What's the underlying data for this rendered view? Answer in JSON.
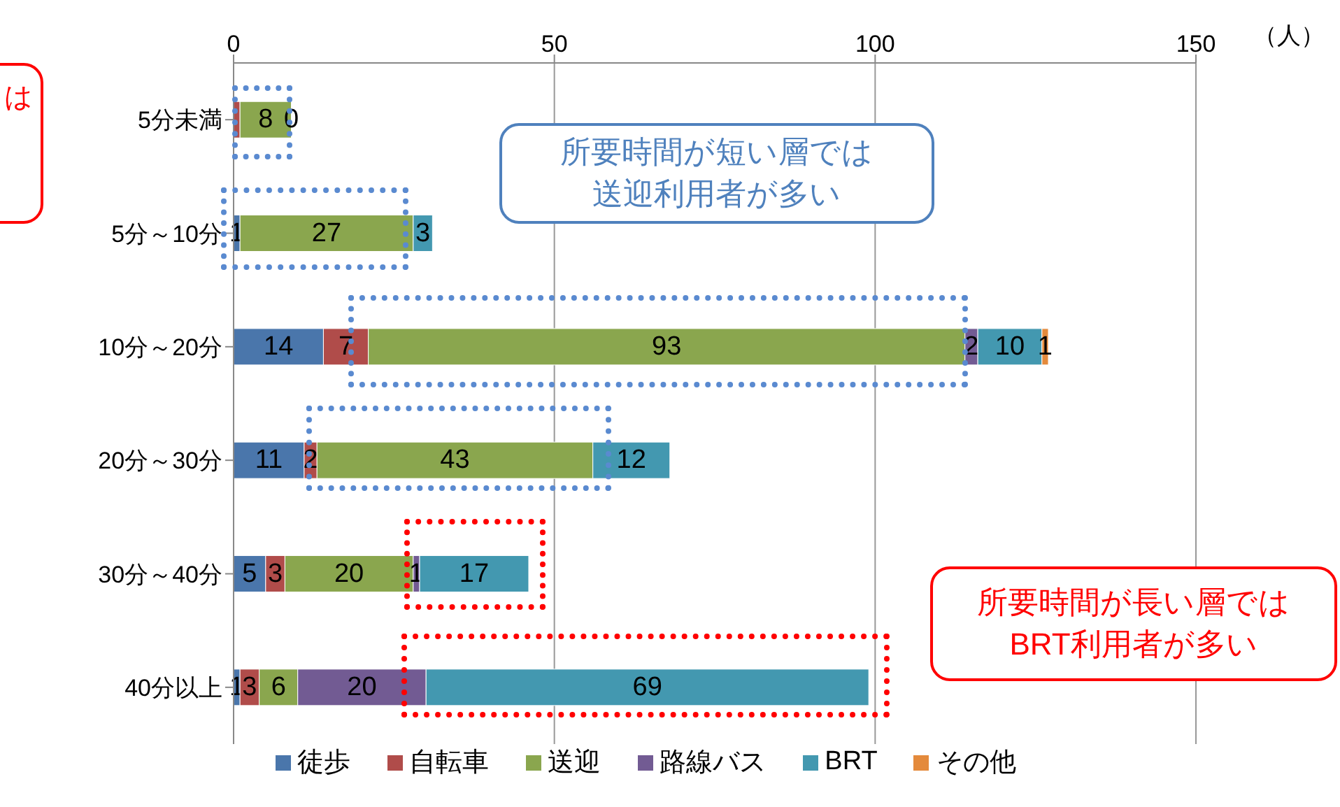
{
  "chart_data": {
    "type": "bar",
    "orientation": "horizontal",
    "stacked": true,
    "categories": [
      "5分未満",
      "5分～10分",
      "10分～20分",
      "20分～30分",
      "30分～40分",
      "40分以上"
    ],
    "series": [
      {
        "name": "徒歩",
        "color": "#4a76ab",
        "values": [
          0,
          1,
          14,
          11,
          5,
          1
        ],
        "value_labels": [
          null,
          "1",
          "14",
          "11",
          "5",
          "1"
        ]
      },
      {
        "name": "自転車",
        "color": "#b04c4a",
        "values": [
          1,
          0,
          7,
          2,
          3,
          3
        ],
        "value_labels": [
          null,
          null,
          "7",
          "2",
          "3",
          "3"
        ]
      },
      {
        "name": "送迎",
        "color": "#8aa64e",
        "values": [
          8,
          27,
          93,
          43,
          20,
          6
        ],
        "value_labels": [
          "8",
          "27",
          "93",
          "43",
          "20",
          "6"
        ]
      },
      {
        "name": "路線バス",
        "color": "#725b93",
        "values": [
          0,
          0,
          2,
          0,
          1,
          20
        ],
        "value_labels": [
          null,
          null,
          "2",
          null,
          "1",
          "20"
        ]
      },
      {
        "name": "BRT",
        "color": "#4398b0",
        "values": [
          0,
          3,
          10,
          12,
          17,
          69
        ],
        "value_labels": [
          "0",
          "3",
          "10",
          "12",
          "17",
          "69"
        ]
      },
      {
        "name": "その他",
        "color": "#e48a3c",
        "values": [
          0,
          0,
          1,
          0,
          0,
          0
        ],
        "value_labels": [
          null,
          null,
          "1",
          null,
          null,
          null
        ]
      }
    ],
    "xlim": [
      0,
      150
    ],
    "xticks": [
      0,
      50,
      100,
      150
    ],
    "xlabel": "（人）",
    "grid": "x",
    "legend": "bottom",
    "annotations": [
      "所要時間が短い層では送迎利用者が多い",
      "所要時間が長い層ではBRT利用者が多い",
      "は"
    ]
  }
}
